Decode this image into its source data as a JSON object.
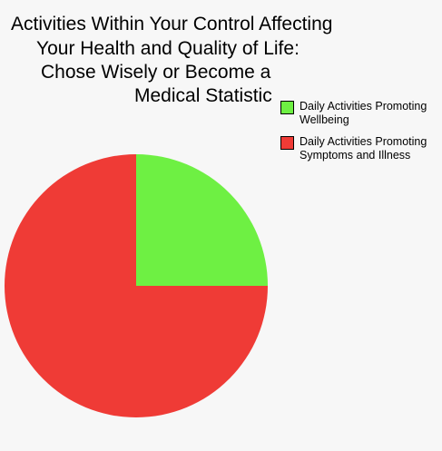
{
  "chart_data": {
    "type": "pie",
    "title_lines": [
      "Activities Within Your Control Affecting",
      "Your Health and Quality of Life:",
      "Chose Wisely or Become a",
      "Medical Statistic"
    ],
    "slices": [
      {
        "label_lines": [
          "Daily Activities Promoting",
          "Wellbeing"
        ],
        "value": 25,
        "color": "#6ef043"
      },
      {
        "label_lines": [
          "Daily Activities Promoting",
          "Symptoms and Illness"
        ],
        "value": 75,
        "color": "#ef3b36"
      }
    ],
    "start_angle_deg": 0,
    "direction": "clockwise",
    "legend_position": "top-right"
  }
}
